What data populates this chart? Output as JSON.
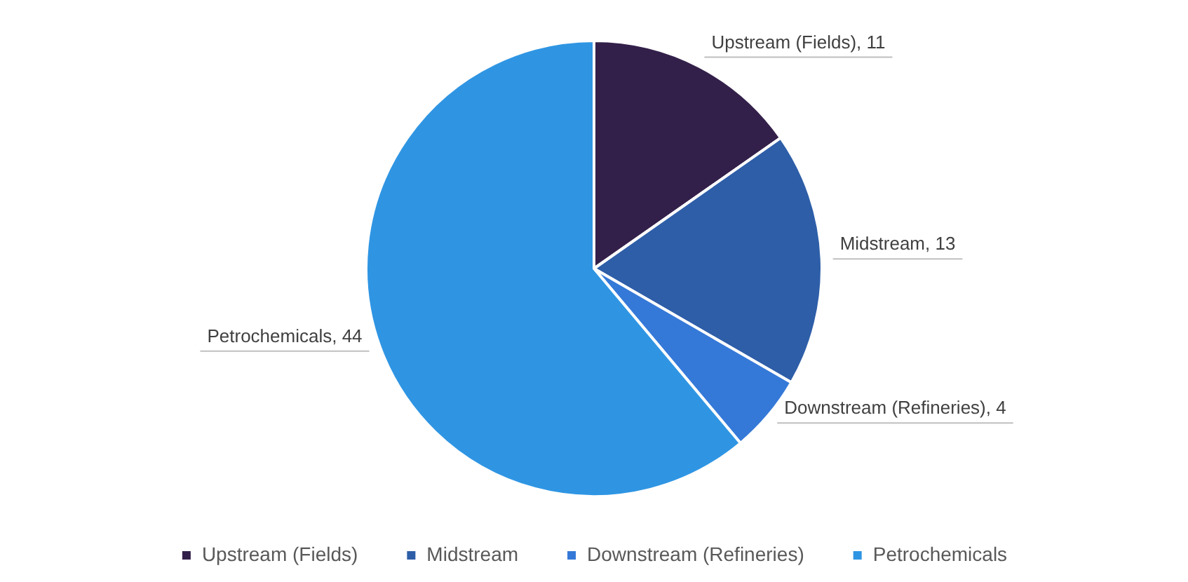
{
  "chart_data": {
    "type": "pie",
    "categories": [
      "Upstream (Fields)",
      "Midstream",
      "Downstream (Refineries)",
      "Petrochemicals"
    ],
    "values": [
      11,
      13,
      4,
      44
    ],
    "value_labels": [
      ", 11",
      ", 13",
      ", 4",
      ", 44"
    ],
    "colors": [
      "#33204a",
      "#2e5ea8",
      "#3579d8",
      "#2f95e3"
    ],
    "legend": "bottom"
  }
}
